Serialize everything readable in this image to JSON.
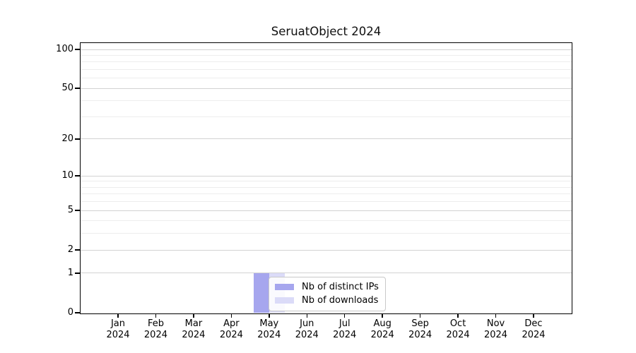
{
  "chart_data": {
    "type": "bar",
    "title": "SeruatObject 2024",
    "categories": [
      "Jan 2024",
      "Feb 2024",
      "Mar 2024",
      "Apr 2024",
      "May 2024",
      "Jun 2024",
      "Jul 2024",
      "Aug 2024",
      "Sep 2024",
      "Oct 2024",
      "Nov 2024",
      "Dec 2024"
    ],
    "series": [
      {
        "name": "Nb of distinct IPs",
        "color": "#a6a6ee",
        "values": [
          0,
          0,
          0,
          0,
          1,
          0,
          0,
          0,
          0,
          0,
          0,
          0
        ]
      },
      {
        "name": "Nb of downloads",
        "color": "#dbdbf8",
        "values": [
          0,
          0,
          0,
          0,
          1,
          0,
          0,
          0,
          0,
          0,
          0,
          0
        ]
      }
    ],
    "xlabel": "",
    "ylabel": "",
    "y_scale": "log1p",
    "y_ticks": [
      0,
      1,
      2,
      5,
      10,
      20,
      50,
      100
    ],
    "y_minor_ticks": [
      3,
      4,
      6,
      7,
      8,
      9,
      30,
      40,
      60,
      70,
      80,
      90
    ],
    "ylim": [
      0,
      112
    ],
    "grid": "horizontal",
    "legend_position": "inside-bottom-center"
  },
  "colors": {
    "major_grid": "#d2d2d2",
    "minor_grid": "#ededed",
    "spine": "#000000",
    "text": "#000000",
    "background": "#ffffff"
  }
}
